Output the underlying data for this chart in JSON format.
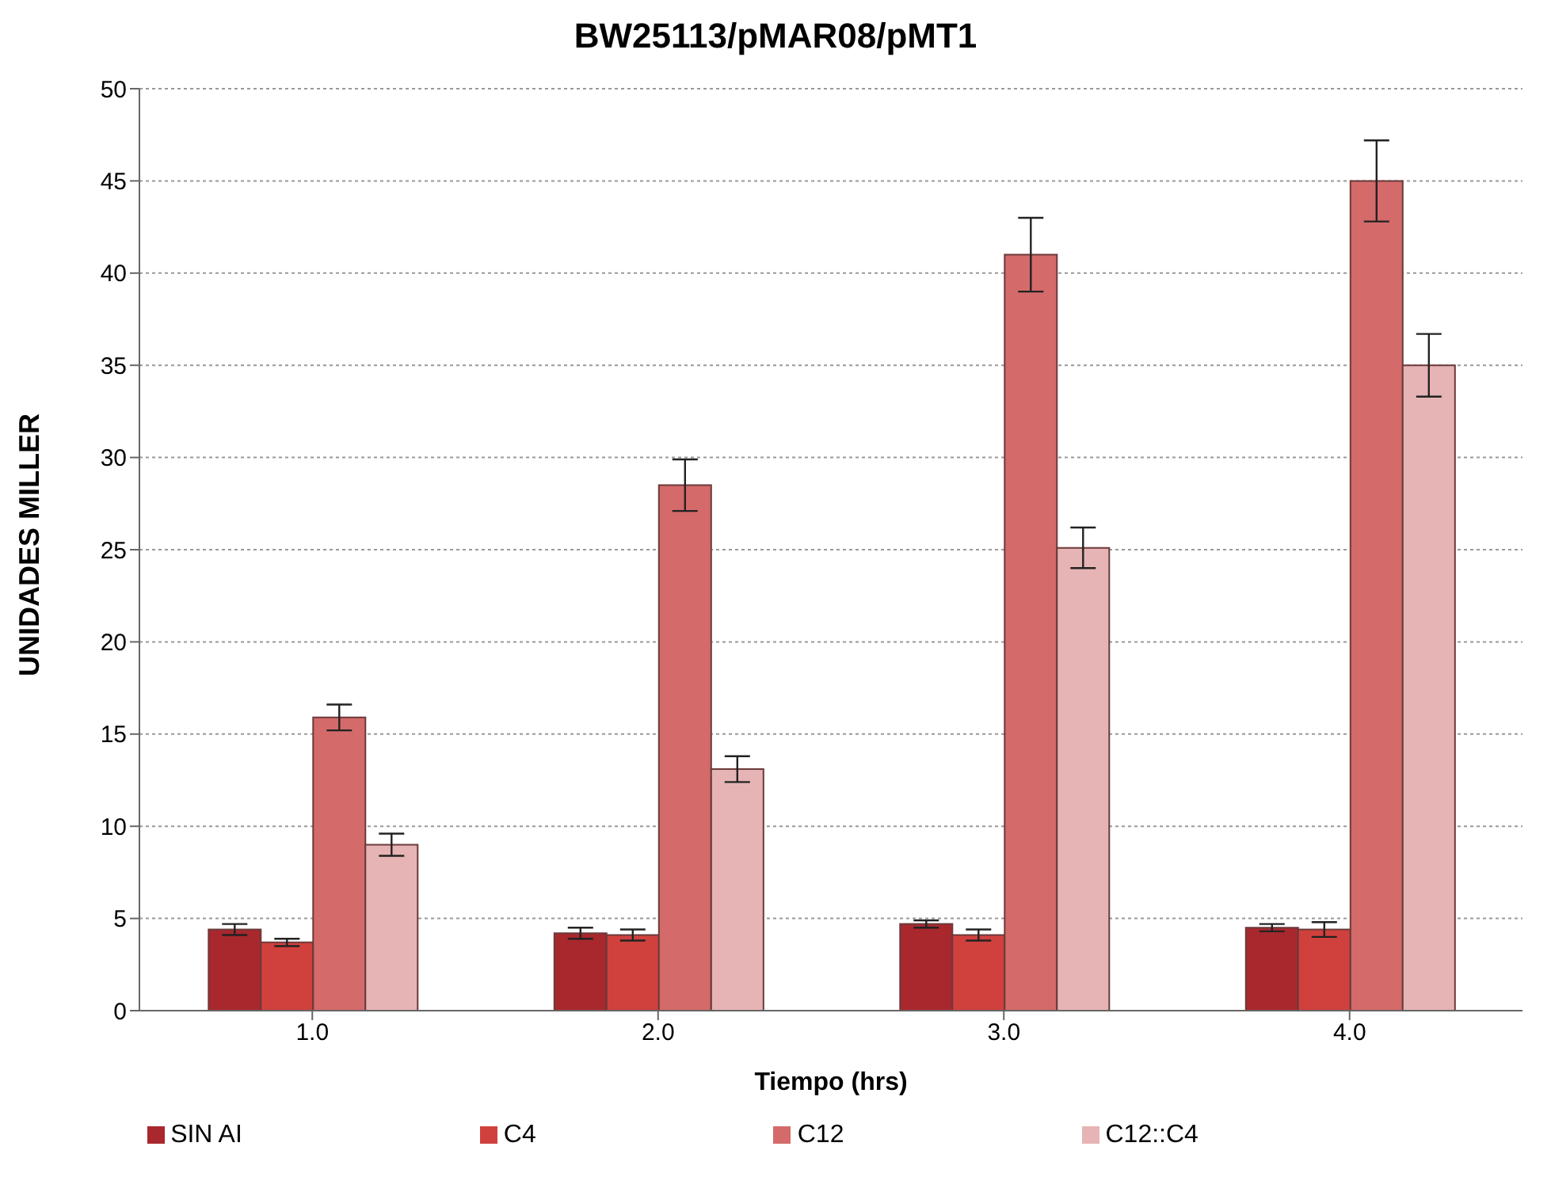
{
  "chart_data": {
    "type": "bar",
    "title": "BW25113/pMAR08/pMT1",
    "xlabel": "Tiempo (hrs)",
    "ylabel": "UNIDADES MILLER",
    "categories": [
      "1.0",
      "2.0",
      "3.0",
      "4.0"
    ],
    "series": [
      {
        "name": "SIN AI",
        "color": "#a8282e",
        "values": [
          4.4,
          4.2,
          4.7,
          4.5
        ],
        "errors": [
          0.3,
          0.3,
          0.2,
          0.2
        ]
      },
      {
        "name": "C4",
        "color": "#d0413d",
        "values": [
          3.7,
          4.1,
          4.1,
          4.4
        ],
        "errors": [
          0.2,
          0.3,
          0.3,
          0.4
        ]
      },
      {
        "name": "C12",
        "color": "#d46a6a",
        "values": [
          15.9,
          28.5,
          41,
          45
        ],
        "errors": [
          0.7,
          1.4,
          2,
          2.2
        ]
      },
      {
        "name": "C12::C4",
        "color": "#e6b4b4",
        "values": [
          9,
          13.1,
          25.1,
          35
        ],
        "errors": [
          0.6,
          0.7,
          1.1,
          1.7
        ]
      }
    ],
    "ylim": [
      0,
      50
    ],
    "yticks": [
      0,
      5,
      10,
      15,
      20,
      25,
      30,
      35,
      40,
      45,
      50
    ],
    "grid": "y",
    "legend": "bottom"
  }
}
